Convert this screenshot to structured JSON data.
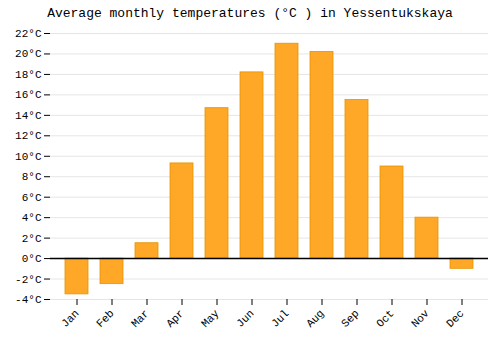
{
  "chart_data": {
    "type": "bar",
    "title": "Average monthly temperatures (°C ) in Yessentukskaya",
    "categories": [
      "Jan",
      "Feb",
      "Mar",
      "Apr",
      "May",
      "Jun",
      "Jul",
      "Aug",
      "Sep",
      "Oct",
      "Nov",
      "Dec"
    ],
    "values": [
      -3.5,
      -2.5,
      1.5,
      9.3,
      14.7,
      18.2,
      21.0,
      20.2,
      15.5,
      9.0,
      4.0,
      -1.0
    ],
    "color": "#FFA726",
    "ylim": [
      -4,
      22
    ],
    "yticks": [
      {
        "value": -4,
        "label": "-4°C"
      },
      {
        "value": -2,
        "label": "-2°C"
      },
      {
        "value": 0,
        "label": "0°C"
      },
      {
        "value": 2,
        "label": "2°C"
      },
      {
        "value": 4,
        "label": "4°C"
      },
      {
        "value": 6,
        "label": "6°C"
      },
      {
        "value": 8,
        "label": "8°C"
      },
      {
        "value": 10,
        "label": "10°C"
      },
      {
        "value": 12,
        "label": "12°C"
      },
      {
        "value": 14,
        "label": "14°C"
      },
      {
        "value": 16,
        "label": "16°C"
      },
      {
        "value": 18,
        "label": "18°C"
      },
      {
        "value": 20,
        "label": "20°C"
      },
      {
        "value": 22,
        "label": "22°C"
      }
    ],
    "grid": true
  }
}
